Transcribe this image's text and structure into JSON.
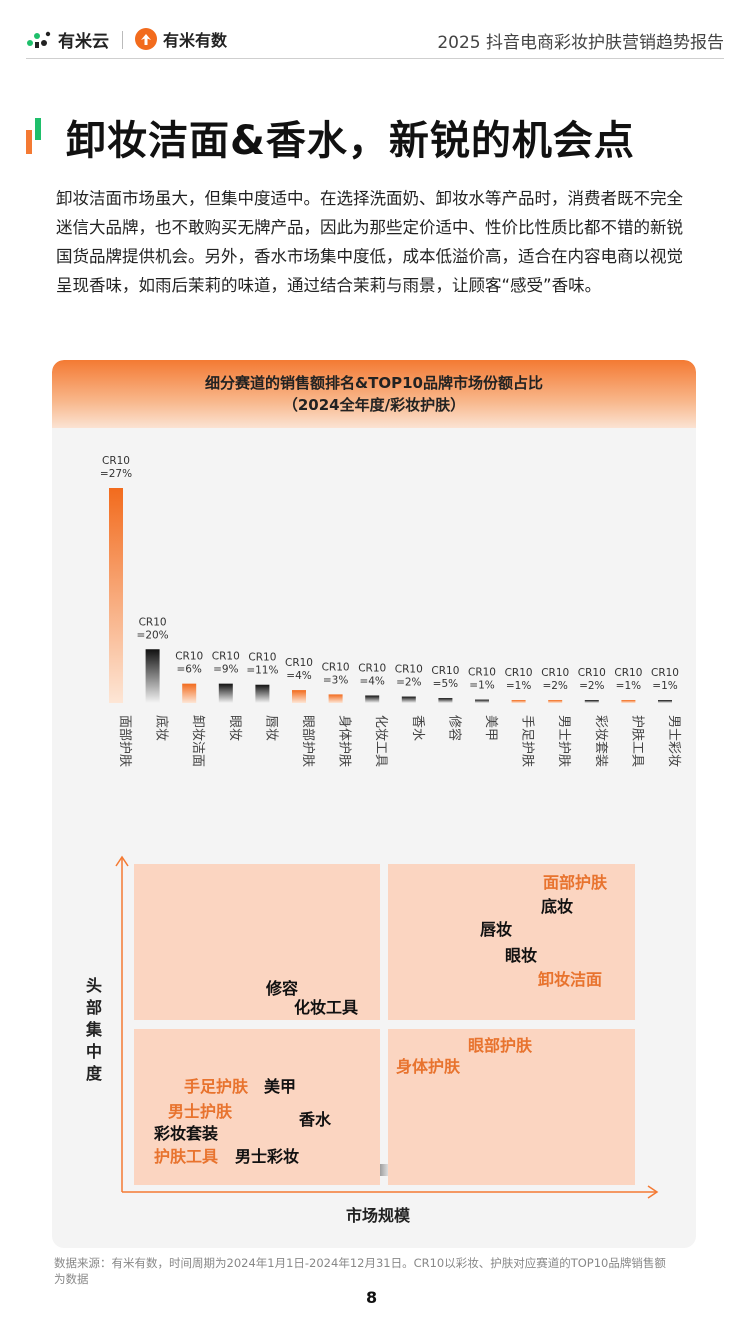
{
  "header": {
    "logo1_text": "有米云",
    "logo2_text": "有米有数",
    "report_title": "2025 抖音电商彩妆护肤营销趋势报告"
  },
  "page_title": "卸妆洁面&香水，新锐的机会点",
  "intro": "卸妆洁面市场虽大，但集中度适中。在选择洗面奶、卸妆水等产品时，消费者既不完全迷信大品牌，也不敢购买无牌产品，因此为那些定价适中、性价比性质比都不错的新锐国货品牌提供机会。另外，香水市场集中度低，成本低溢价高，适合在内容电商以视觉呈现香味，如雨后茉莉的味道，通过结合茉莉与雨景，让顾客“感受”香味。",
  "chart_title_line1": "细分赛道的销售额排名&TOP10品牌市场份额占比",
  "chart_title_line2": "（2024全年度/彩妆护肤）",
  "colors": {
    "makeup": "#111111",
    "skincare": "#f47a33",
    "accent": "#e8732e"
  },
  "chart_data": {
    "type": "bar",
    "categories": [
      "面部护肤",
      "底妆",
      "卸妆洁面",
      "眼妆",
      "唇妆",
      "眼部护肤",
      "身体护肤",
      "化妆工具",
      "香水",
      "修容",
      "美甲",
      "手足护肤",
      "男士护肤",
      "彩妆套装",
      "护肤工具",
      "男士彩妆"
    ],
    "groups": [
      "护肤",
      "彩妆",
      "护肤",
      "彩妆",
      "彩妆",
      "护肤",
      "护肤",
      "彩妆",
      "彩妆",
      "彩妆",
      "彩妆",
      "护肤",
      "护肤",
      "彩妆",
      "护肤",
      "彩妆"
    ],
    "relative_sales": [
      100,
      25,
      9,
      9,
      8.5,
      6,
      4,
      3.5,
      3,
      2.3,
      1.6,
      1.2,
      1.0,
      0.9,
      0.7,
      0.5
    ],
    "cr10_labels": [
      "CR10\n=27%",
      "CR10\n=20%",
      "CR10\n=6%",
      "CR10\n=9%",
      "CR10\n=11%",
      "CR10\n=4%",
      "CR10\n=3%",
      "CR10\n=4%",
      "CR10\n=2%",
      "CR10\n=5%",
      "CR10\n=1%",
      "CR10\n=1%",
      "CR10\n=2%",
      "CR10\n=2%",
      "CR10\n=1%",
      "CR10\n=1%"
    ],
    "legend": [
      "彩妆",
      "护肤"
    ],
    "legend_placement": "bottom-center",
    "grid": false
  },
  "matrix": {
    "y_label": "头部集中度",
    "x_label": "市场规模",
    "items": [
      {
        "label": "面部护肤",
        "group": "护肤"
      },
      {
        "label": "底妆",
        "group": "彩妆"
      },
      {
        "label": "唇妆",
        "group": "彩妆"
      },
      {
        "label": "眼妆",
        "group": "彩妆"
      },
      {
        "label": "卸妆洁面",
        "group": "护肤"
      },
      {
        "label": "修容",
        "group": "彩妆"
      },
      {
        "label": "化妆工具",
        "group": "彩妆"
      },
      {
        "label": "眼部护肤",
        "group": "护肤"
      },
      {
        "label": "身体护肤",
        "group": "护肤"
      },
      {
        "label": "手足护肤",
        "group": "护肤"
      },
      {
        "label": "美甲",
        "group": "彩妆"
      },
      {
        "label": "男士护肤",
        "group": "护肤"
      },
      {
        "label": "香水",
        "group": "彩妆"
      },
      {
        "label": "彩妆套装",
        "group": "彩妆"
      },
      {
        "label": "护肤工具",
        "group": "护肤"
      },
      {
        "label": "男士彩妆",
        "group": "彩妆"
      }
    ]
  },
  "footnote": "数据来源：有米有数，时间周期为2024年1月1日-2024年12月31日。CR10以彩妆、护肤对应赛道的TOP10品牌销售额为数据",
  "page_number": "8"
}
